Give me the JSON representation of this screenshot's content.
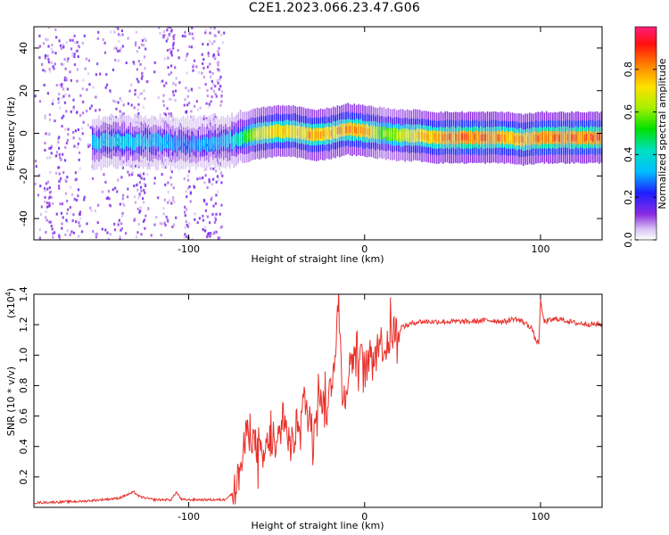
{
  "title": "C2E1.2023.066.23.47.G06",
  "colors": {
    "snr_line": "#e8302a",
    "ridge_core": "#d81e3c",
    "noise": "#8a2be2",
    "axis": "#000000"
  },
  "chart_data": [
    {
      "type": "heatmap",
      "xlabel": "Height of straight line (km)",
      "ylabel": "Frequency (Hz)",
      "xlim": [
        -188,
        135
      ],
      "ylim": [
        -50,
        50
      ],
      "xticks": [
        -100,
        0,
        100
      ],
      "yticks": [
        -40,
        -20,
        0,
        20,
        40
      ],
      "xtick_labels": [
        "-100",
        "0",
        "100"
      ],
      "ytick_labels": [
        "-40",
        "-20",
        "0",
        "20",
        "40"
      ],
      "colorbar": {
        "label": "Normalized spectral amplitude",
        "range": [
          0.0,
          1.0
        ],
        "ticks": [
          0.0,
          0.2,
          0.4,
          0.6,
          0.8
        ],
        "tick_labels": [
          "0.0",
          "0.2",
          "0.4",
          "0.6",
          "0.8"
        ],
        "colormap": "rainbow"
      },
      "ridge": {
        "x": [
          -155,
          -140,
          -120,
          -100,
          -80,
          -70,
          -60,
          -50,
          -40,
          -30,
          -20,
          -10,
          0,
          10,
          20,
          30,
          40,
          50,
          60,
          70,
          80,
          90,
          100,
          110,
          120,
          135
        ],
        "frequency": [
          -4,
          -4,
          -4,
          -5,
          -4,
          -2,
          0,
          1,
          1,
          -1,
          0,
          2,
          1,
          0,
          -1,
          -1,
          -2,
          -2,
          -2,
          -2,
          -2,
          -3,
          -2,
          -2,
          -2,
          -2
        ],
        "amplitude": [
          0.35,
          0.4,
          0.35,
          0.3,
          0.35,
          0.5,
          0.75,
          0.8,
          0.8,
          0.85,
          0.8,
          0.85,
          0.85,
          0.6,
          0.7,
          0.8,
          0.85,
          0.9,
          0.9,
          0.9,
          0.85,
          0.85,
          0.9,
          0.9,
          0.9,
          0.9
        ]
      },
      "noise_band": [
        -188,
        -80
      ]
    },
    {
      "type": "line",
      "xlabel": "Height of straight line (km)",
      "ylabel": "SNR (10 * v/v)",
      "multiplier_label": "(x10",
      "multiplier_exp": "4",
      "multiplier_close": ")",
      "xlim": [
        -188,
        135
      ],
      "ylim": [
        0,
        1.4
      ],
      "xticks": [
        -100,
        0,
        100
      ],
      "yticks": [
        0.2,
        0.4,
        0.6,
        0.8,
        1.0,
        1.2,
        1.4
      ],
      "xtick_labels": [
        "-100",
        "0",
        "100"
      ],
      "ytick_labels": [
        "0.2",
        "0.4",
        "0.6",
        "0.8",
        "1.0",
        "1.2",
        "1.4"
      ],
      "series": [
        {
          "x": [
            -188,
            -160,
            -150,
            -140,
            -131,
            -128,
            -120,
            -110,
            -107,
            -104,
            -100,
            -90,
            -80,
            -74,
            -70,
            -66,
            -62,
            -58,
            -54,
            -50,
            -46,
            -42,
            -38,
            -34,
            -30,
            -26,
            -22,
            -18,
            -15,
            -12,
            -8,
            -4,
            0,
            4,
            8,
            12,
            16,
            20,
            25,
            30,
            40,
            50,
            60,
            70,
            80,
            85,
            90,
            95,
            97,
            99,
            100,
            102,
            110,
            120,
            135
          ],
          "y": [
            0.03,
            0.04,
            0.05,
            0.06,
            0.1,
            0.07,
            0.05,
            0.05,
            0.1,
            0.05,
            0.05,
            0.05,
            0.05,
            0.1,
            0.28,
            0.55,
            0.4,
            0.3,
            0.45,
            0.35,
            0.6,
            0.38,
            0.55,
            0.7,
            0.5,
            0.8,
            0.6,
            0.9,
            1.3,
            0.7,
            0.95,
            1.05,
            0.9,
            1.0,
            1.1,
            1.05,
            1.15,
            1.18,
            1.2,
            1.22,
            1.22,
            1.22,
            1.22,
            1.23,
            1.22,
            1.24,
            1.22,
            1.18,
            1.1,
            1.08,
            1.35,
            1.22,
            1.24,
            1.21,
            1.2
          ]
        }
      ]
    }
  ]
}
